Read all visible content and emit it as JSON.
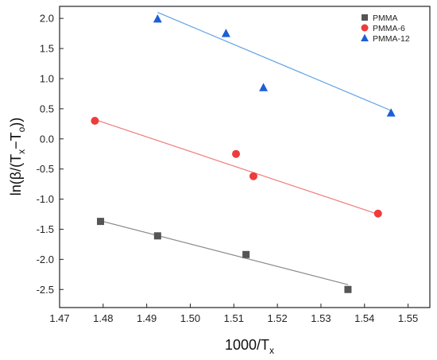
{
  "chart_data": {
    "type": "scatter",
    "xlabel": {
      "main": "1000/T",
      "sub": "x"
    },
    "ylabel": {
      "prefix": "ln(β/(T",
      "sub1": "x",
      "mid": "−T",
      "sub2": "o",
      "suffix": "))"
    },
    "xlim": [
      1.47,
      1.555
    ],
    "ylim": [
      -2.8,
      2.2
    ],
    "xticks": [
      1.47,
      1.48,
      1.49,
      1.5,
      1.51,
      1.52,
      1.53,
      1.54,
      1.55
    ],
    "yticks": [
      -2.5,
      -2.0,
      -1.5,
      -1.0,
      -0.5,
      0.0,
      0.5,
      1.0,
      1.5,
      2.0
    ],
    "grid": false,
    "legend_position": "top-right",
    "series": [
      {
        "name": "PMMA",
        "marker": "square",
        "color": "#555555",
        "line_color": "#8a8a8a",
        "x": [
          1.4794,
          1.4925,
          1.5128,
          1.5362
        ],
        "y": [
          -1.37,
          -1.61,
          -1.92,
          -2.5
        ],
        "fit": [
          [
            1.4794,
            -1.36
          ],
          [
            1.5362,
            -2.42
          ]
        ]
      },
      {
        "name": "PMMA-6",
        "marker": "circle",
        "color": "#ee3b3b",
        "line_color": "#f07a7a",
        "x": [
          1.4781,
          1.5105,
          1.5145,
          1.5431
        ],
        "y": [
          0.3,
          -0.25,
          -0.62,
          -1.24
        ],
        "fit": [
          [
            1.4781,
            0.32
          ],
          [
            1.5431,
            -1.25
          ]
        ]
      },
      {
        "name": "PMMA-12",
        "marker": "triangle",
        "color": "#1a5fd6",
        "line_color": "#5ea2e6",
        "x": [
          1.4925,
          1.5082,
          1.5168,
          1.5461
        ],
        "y": [
          1.99,
          1.75,
          0.85,
          0.43
        ],
        "fit": [
          [
            1.4925,
            2.1
          ],
          [
            1.5461,
            0.47
          ]
        ]
      }
    ]
  }
}
